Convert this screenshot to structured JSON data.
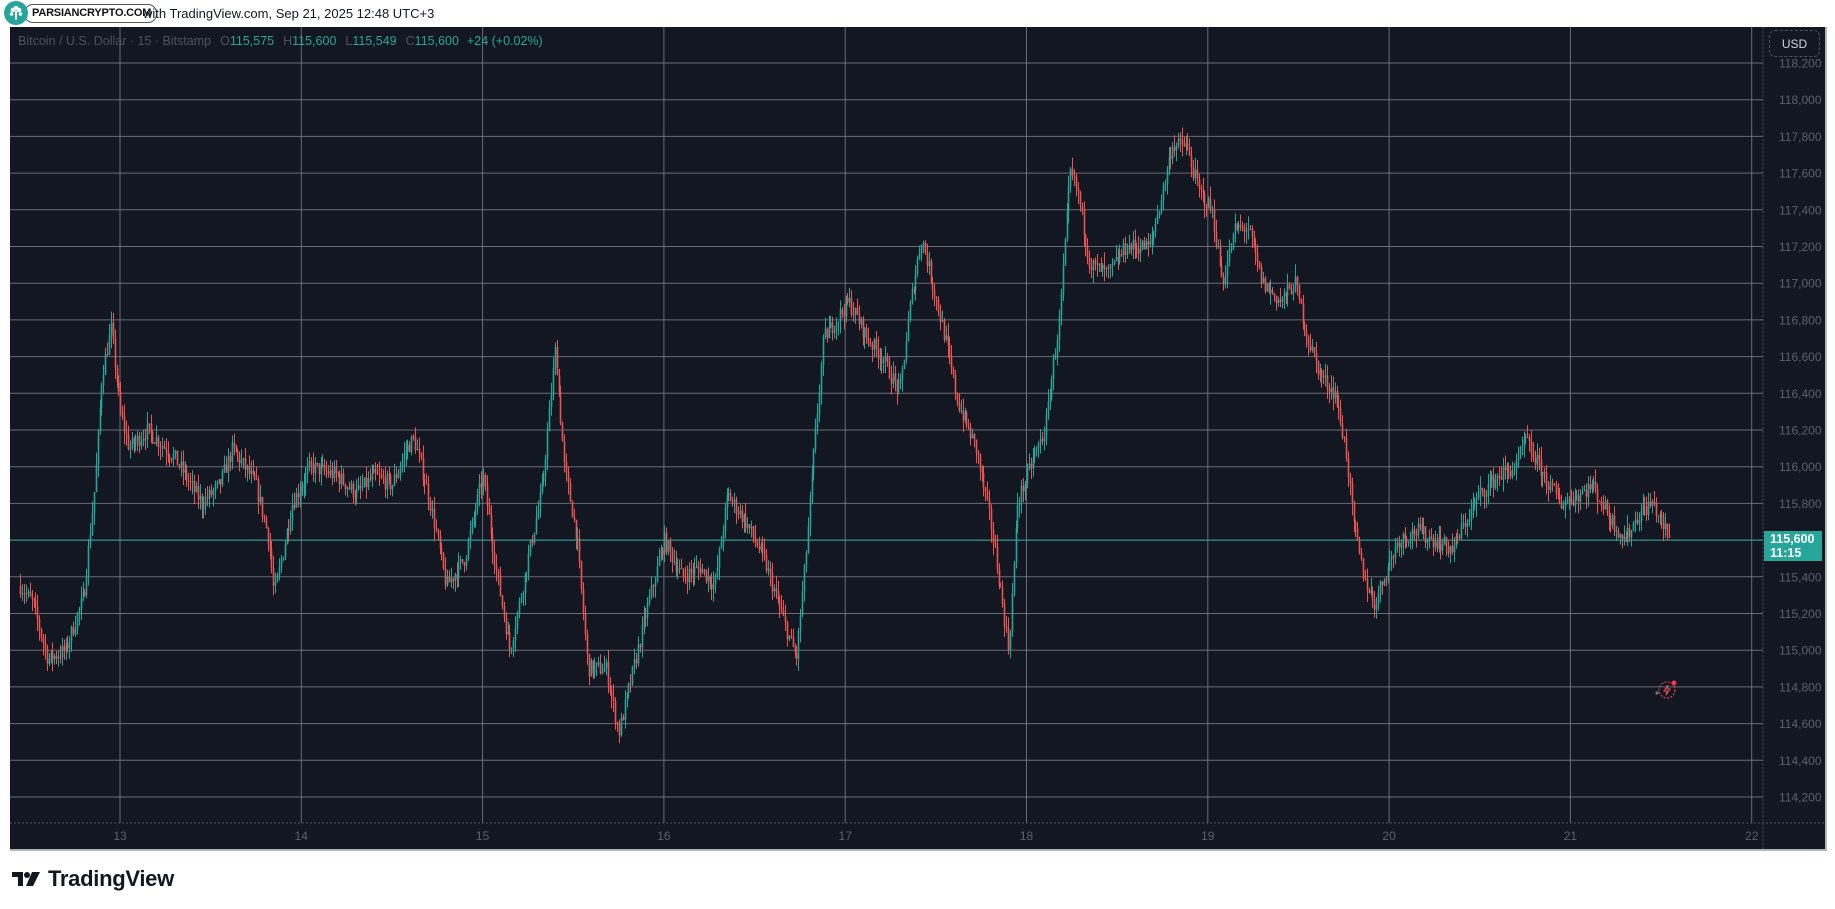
{
  "header": {
    "brand_badge": "PARSIANCRYPTO.COM",
    "caption": "with TradingView.com, Sep 21, 2025 12:48 UTC+3"
  },
  "legend": {
    "symbol": "Bitcoin / U.S. Dollar · 15 · Bitstamp",
    "open_label": "O",
    "open": "115,575",
    "high_label": "H",
    "high": "115,600",
    "low_label": "L",
    "low": "115,549",
    "close_label": "C",
    "close": "115,600",
    "change": "+24 (+0.02%)"
  },
  "price_axis": {
    "currency_button": "USD",
    "last_price": "115,600",
    "countdown": "11:15"
  },
  "footer": {
    "logo_text": "TradingView"
  },
  "colors": {
    "background": "#131722",
    "grid": "#787b86",
    "up": "#26a69a",
    "down": "#ef5350",
    "axis_text": "#5d606b",
    "last_price": "#26a69a"
  },
  "chart_data": {
    "type": "candlestick",
    "title": "Bitcoin / U.S. Dollar · 15 · Bitstamp",
    "interval": "15",
    "exchange": "Bitstamp",
    "xlabel": "",
    "ylabel": "USD",
    "x_ticks": [
      "13",
      "14",
      "15",
      "16",
      "17",
      "18",
      "19",
      "20",
      "21",
      "22"
    ],
    "y_ticks": [
      118200,
      118000,
      117800,
      117600,
      117400,
      117200,
      117000,
      116800,
      116600,
      116400,
      116200,
      116000,
      115800,
      115600,
      115400,
      115200,
      115000,
      114800,
      114600,
      114400,
      114200
    ],
    "y_tick_labels": [
      "118,200",
      "118,000",
      "117,800",
      "117,600",
      "117,400",
      "117,200",
      "117,000",
      "116,800",
      "116,600",
      "116,400",
      "116,200",
      "116,000",
      "115,800",
      "115,600",
      "115,400",
      "115,200",
      "115,000",
      "114,800",
      "114,600",
      "114,400",
      "114,200"
    ],
    "ylim": [
      114130,
      118400
    ],
    "xlim_days": [
      12.45,
      22.05
    ],
    "grid": true,
    "last_price": 115600,
    "ohlc_last": {
      "open": 115575,
      "high": 115600,
      "low": 115549,
      "close": 115600,
      "change": 24,
      "change_pct": 0.02
    },
    "path_keyframes": [
      [
        12.45,
        115350
      ],
      [
        12.52,
        115250
      ],
      [
        12.6,
        114950
      ],
      [
        12.7,
        115000
      ],
      [
        12.8,
        115300
      ],
      [
        12.86,
        115900
      ],
      [
        12.9,
        116500
      ],
      [
        12.95,
        116750
      ],
      [
        13.0,
        116300
      ],
      [
        13.05,
        116100
      ],
      [
        13.15,
        116200
      ],
      [
        13.3,
        116050
      ],
      [
        13.45,
        115800
      ],
      [
        13.55,
        115900
      ],
      [
        13.62,
        116100
      ],
      [
        13.75,
        115900
      ],
      [
        13.82,
        115600
      ],
      [
        13.85,
        115300
      ],
      [
        13.95,
        115800
      ],
      [
        14.05,
        116000
      ],
      [
        14.2,
        115950
      ],
      [
        14.3,
        115850
      ],
      [
        14.4,
        115950
      ],
      [
        14.5,
        115900
      ],
      [
        14.58,
        116100
      ],
      [
        14.62,
        116150
      ],
      [
        14.7,
        115850
      ],
      [
        14.8,
        115350
      ],
      [
        14.9,
        115500
      ],
      [
        15.0,
        115950
      ],
      [
        15.08,
        115400
      ],
      [
        15.15,
        115000
      ],
      [
        15.25,
        115500
      ],
      [
        15.33,
        115900
      ],
      [
        15.4,
        116650
      ],
      [
        15.45,
        116000
      ],
      [
        15.52,
        115600
      ],
      [
        15.58,
        114900
      ],
      [
        15.68,
        114900
      ],
      [
        15.75,
        114550
      ],
      [
        15.82,
        114850
      ],
      [
        15.9,
        115200
      ],
      [
        16.0,
        115600
      ],
      [
        16.1,
        115400
      ],
      [
        16.2,
        115450
      ],
      [
        16.28,
        115350
      ],
      [
        16.35,
        115850
      ],
      [
        16.45,
        115700
      ],
      [
        16.55,
        115500
      ],
      [
        16.68,
        115100
      ],
      [
        16.73,
        114950
      ],
      [
        16.78,
        115500
      ],
      [
        16.82,
        116000
      ],
      [
        16.88,
        116700
      ],
      [
        16.95,
        116800
      ],
      [
        17.02,
        116900
      ],
      [
        17.12,
        116700
      ],
      [
        17.2,
        116600
      ],
      [
        17.3,
        116400
      ],
      [
        17.36,
        116900
      ],
      [
        17.42,
        117250
      ],
      [
        17.48,
        117000
      ],
      [
        17.55,
        116700
      ],
      [
        17.62,
        116350
      ],
      [
        17.72,
        116100
      ],
      [
        17.8,
        115700
      ],
      [
        17.86,
        115300
      ],
      [
        17.9,
        115000
      ],
      [
        17.95,
        115800
      ],
      [
        18.02,
        116000
      ],
      [
        18.1,
        116200
      ],
      [
        18.18,
        116800
      ],
      [
        18.24,
        117600
      ],
      [
        18.28,
        117500
      ],
      [
        18.35,
        117100
      ],
      [
        18.45,
        117050
      ],
      [
        18.55,
        117200
      ],
      [
        18.68,
        117200
      ],
      [
        18.75,
        117500
      ],
      [
        18.8,
        117750
      ],
      [
        18.88,
        117750
      ],
      [
        18.95,
        117500
      ],
      [
        19.02,
        117400
      ],
      [
        19.08,
        117000
      ],
      [
        19.15,
        117300
      ],
      [
        19.22,
        117300
      ],
      [
        19.3,
        117000
      ],
      [
        19.4,
        116900
      ],
      [
        19.48,
        117000
      ],
      [
        19.55,
        116700
      ],
      [
        19.62,
        116500
      ],
      [
        19.7,
        116400
      ],
      [
        19.76,
        116100
      ],
      [
        19.8,
        115700
      ],
      [
        19.86,
        115400
      ],
      [
        19.92,
        115250
      ],
      [
        19.97,
        115400
      ],
      [
        20.05,
        115600
      ],
      [
        20.15,
        115650
      ],
      [
        20.25,
        115600
      ],
      [
        20.35,
        115550
      ],
      [
        20.42,
        115700
      ],
      [
        20.5,
        115850
      ],
      [
        20.6,
        115950
      ],
      [
        20.7,
        116000
      ],
      [
        20.75,
        116150
      ],
      [
        20.8,
        116050
      ],
      [
        20.88,
        115900
      ],
      [
        20.95,
        115800
      ],
      [
        21.05,
        115850
      ],
      [
        21.12,
        115900
      ],
      [
        21.2,
        115750
      ],
      [
        21.3,
        115600
      ],
      [
        21.38,
        115750
      ],
      [
        21.45,
        115800
      ],
      [
        21.5,
        115700
      ],
      [
        21.55,
        115600
      ]
    ]
  }
}
